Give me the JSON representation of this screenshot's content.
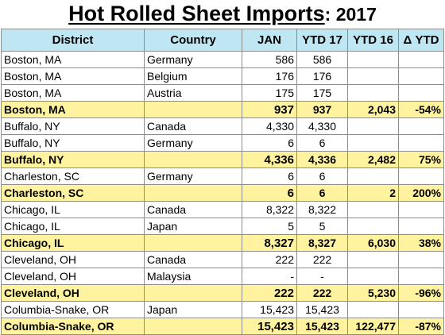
{
  "title": {
    "main": "Hot Rolled Sheet Imports",
    "sub": ": 2017"
  },
  "columns": {
    "district": "District",
    "country": "Country",
    "jan": "JAN",
    "ytd17": "YTD 17",
    "ytd16": "YTD 16",
    "delta": "Δ YTD"
  },
  "rows": [
    {
      "district": "Boston, MA",
      "country": "Germany",
      "jan": "586",
      "ytd17": "586",
      "ytd16": "",
      "delta": "",
      "total": false
    },
    {
      "district": "Boston, MA",
      "country": "Belgium",
      "jan": "176",
      "ytd17": "176",
      "ytd16": "",
      "delta": "",
      "total": false
    },
    {
      "district": "Boston, MA",
      "country": "Austria",
      "jan": "175",
      "ytd17": "175",
      "ytd16": "",
      "delta": "",
      "total": false
    },
    {
      "district": "Boston, MA",
      "country": "",
      "jan": "937",
      "ytd17": "937",
      "ytd16": "2,043",
      "delta": "-54%",
      "total": true
    },
    {
      "district": "Buffalo, NY",
      "country": "Canada",
      "jan": "4,330",
      "ytd17": "4,330",
      "ytd16": "",
      "delta": "",
      "total": false
    },
    {
      "district": "Buffalo, NY",
      "country": "Germany",
      "jan": "6",
      "ytd17": "6",
      "ytd16": "",
      "delta": "",
      "total": false
    },
    {
      "district": "Buffalo, NY",
      "country": "",
      "jan": "4,336",
      "ytd17": "4,336",
      "ytd16": "2,482",
      "delta": "75%",
      "total": true
    },
    {
      "district": "Charleston, SC",
      "country": "Germany",
      "jan": "6",
      "ytd17": "6",
      "ytd16": "",
      "delta": "",
      "total": false
    },
    {
      "district": "Charleston, SC",
      "country": "",
      "jan": "6",
      "ytd17": "6",
      "ytd16": "2",
      "delta": "200%",
      "total": true
    },
    {
      "district": "Chicago, IL",
      "country": "Canada",
      "jan": "8,322",
      "ytd17": "8,322",
      "ytd16": "",
      "delta": "",
      "total": false
    },
    {
      "district": "Chicago, IL",
      "country": "Japan",
      "jan": "5",
      "ytd17": "5",
      "ytd16": "",
      "delta": "",
      "total": false
    },
    {
      "district": "Chicago, IL",
      "country": "",
      "jan": "8,327",
      "ytd17": "8,327",
      "ytd16": "6,030",
      "delta": "38%",
      "total": true
    },
    {
      "district": "Cleveland, OH",
      "country": "Canada",
      "jan": "222",
      "ytd17": "222",
      "ytd16": "",
      "delta": "",
      "total": false
    },
    {
      "district": "Cleveland, OH",
      "country": "Malaysia",
      "jan": "-",
      "ytd17": "-",
      "ytd16": "",
      "delta": "",
      "total": false
    },
    {
      "district": "Cleveland, OH",
      "country": "",
      "jan": "222",
      "ytd17": "222",
      "ytd16": "5,230",
      "delta": "-96%",
      "total": true
    },
    {
      "district": "Columbia-Snake, OR",
      "country": "Japan",
      "jan": "15,423",
      "ytd17": "15,423",
      "ytd16": "",
      "delta": "",
      "total": false
    },
    {
      "district": "Columbia-Snake, OR",
      "country": "",
      "jan": "15,423",
      "ytd17": "15,423",
      "ytd16": "122,477",
      "delta": "-87%",
      "total": true
    }
  ]
}
